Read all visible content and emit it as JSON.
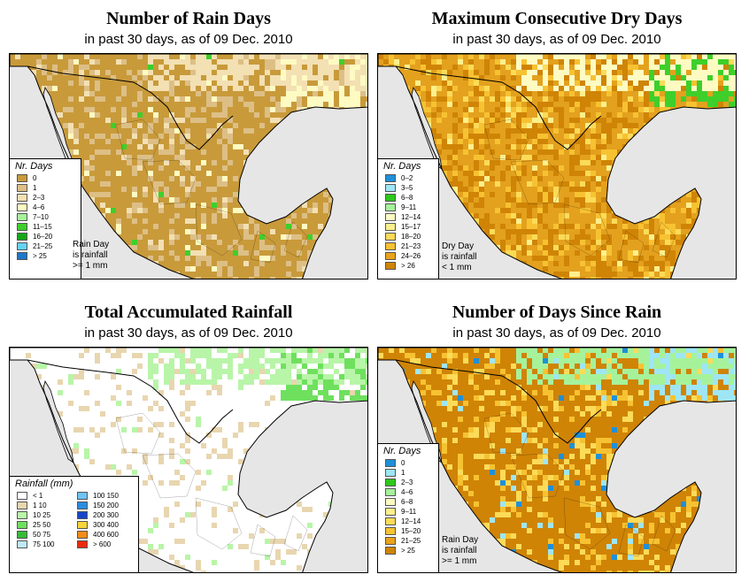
{
  "panels": [
    {
      "title": "Number of Rain Days",
      "subtitle": "in past 30 days, as of  09 Dec. 2010",
      "legend_title": "Nr. Days",
      "legend": [
        {
          "label": "0",
          "color": "#c89a3a"
        },
        {
          "label": "1",
          "color": "#ddbf86"
        },
        {
          "label": "2–3",
          "color": "#f3e0b3"
        },
        {
          "label": "4–6",
          "color": "#fdfbc2"
        },
        {
          "label": "7–10",
          "color": "#a6f29b"
        },
        {
          "label": "11–15",
          "color": "#3ecf2b"
        },
        {
          "label": "16–20",
          "color": "#12a716"
        },
        {
          "label": "21–25",
          "color": "#63d3f4"
        },
        {
          "label": "> 25",
          "color": "#1f78c8"
        }
      ],
      "note": [
        "Rain Day",
        "is rainfall",
        ">= 1 mm"
      ]
    },
    {
      "title": "Maximum Consecutive Dry Days",
      "subtitle": "in past 30 days, as of  09 Dec. 2010",
      "legend_title": "Nr. Days",
      "legend": [
        {
          "label": "0–2",
          "color": "#1f90d8"
        },
        {
          "label": "3–5",
          "color": "#9ee6f6"
        },
        {
          "label": "6–8",
          "color": "#2dc81b"
        },
        {
          "label": "9–11",
          "color": "#a6f29b"
        },
        {
          "label": "12–14",
          "color": "#fdfbc2"
        },
        {
          "label": "15–17",
          "color": "#fdf08c"
        },
        {
          "label": "18–20",
          "color": "#fcdb58"
        },
        {
          "label": "21–23",
          "color": "#f7c232"
        },
        {
          "label": "24–26",
          "color": "#eaa21a"
        },
        {
          "label": "> 26",
          "color": "#cf8406"
        }
      ],
      "note": [
        "Dry Day",
        "is rainfall",
        "< 1 mm"
      ]
    },
    {
      "title": "Total Accumulated Rainfall",
      "subtitle": "in past 30 days, as of  09 Dec. 2010",
      "legend_title": "Rainfall (mm)",
      "legend": [
        {
          "label": "< 1",
          "color": "#ffffff"
        },
        {
          "label": "1    10",
          "color": "#e8d6b0"
        },
        {
          "label": "10    25",
          "color": "#b8f5a8"
        },
        {
          "label": "25    50",
          "color": "#6fe05e"
        },
        {
          "label": "50    75",
          "color": "#36bc38"
        },
        {
          "label": "75    100",
          "color": "#bfe9f8"
        },
        {
          "label": "100    150",
          "color": "#6ec4f2"
        },
        {
          "label": "150    200",
          "color": "#2a8ce0"
        },
        {
          "label": "200    300",
          "color": "#1646c8"
        },
        {
          "label": "300    400",
          "color": "#f5d53b"
        },
        {
          "label": "400    600",
          "color": "#f28b18"
        },
        {
          "label": "> 600",
          "color": "#ee2a0c"
        }
      ],
      "note": []
    },
    {
      "title": "Number of Days Since Rain",
      "subtitle": "in past 30 days, as of  09 Dec. 2010",
      "legend_title": "Nr. Days",
      "legend": [
        {
          "label": "0",
          "color": "#1f90d8"
        },
        {
          "label": "1",
          "color": "#9ee6f6"
        },
        {
          "label": "2–3",
          "color": "#2dc81b"
        },
        {
          "label": "4–6",
          "color": "#a6f29b"
        },
        {
          "label": "6–8",
          "color": "#fdfbc2"
        },
        {
          "label": "9–11",
          "color": "#fdf08c"
        },
        {
          "label": "12–14",
          "color": "#fcdb58"
        },
        {
          "label": "15–20",
          "color": "#f7c232"
        },
        {
          "label": "21–25",
          "color": "#eaa21a"
        },
        {
          "label": "> 25",
          "color": "#cf8406"
        }
      ],
      "note": [
        "Rain Day",
        "is rainfall",
        ">= 1 mm"
      ]
    }
  ],
  "colors": {
    "ocean": "#e6e6e6",
    "border": "#000000"
  }
}
